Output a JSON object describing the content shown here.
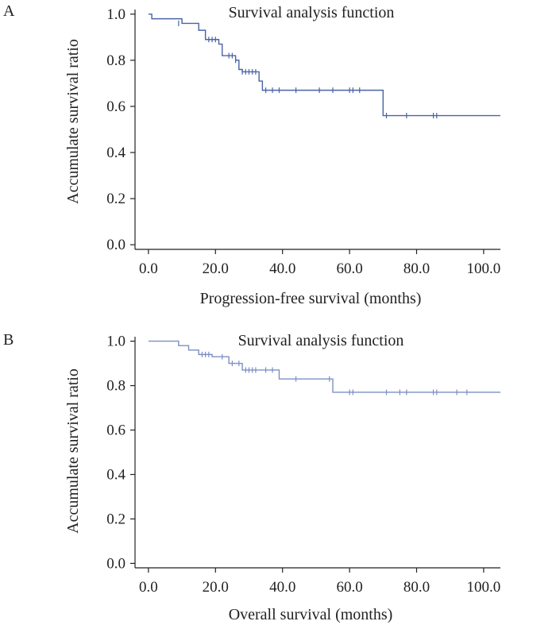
{
  "figure": {
    "panels": [
      "A",
      "B"
    ]
  },
  "chart_data": [
    {
      "type": "line",
      "panel": "A",
      "title": "Survival analysis function",
      "xlabel": "Progression-free survival (months)",
      "ylabel": "Accumulate survival ratio",
      "xlim": [
        -4,
        105
      ],
      "ylim": [
        -0.02,
        1.02
      ],
      "xticks": [
        0,
        20,
        40,
        60,
        80,
        100
      ],
      "xtick_labels": [
        "0.0",
        "20.0",
        "40.0",
        "60.0",
        "80.0",
        "100.0"
      ],
      "yticks": [
        0,
        0.2,
        0.4,
        0.6,
        0.8,
        1.0
      ],
      "ytick_labels": [
        "0.0",
        "0.2",
        "0.4",
        "0.6",
        "0.8",
        "1.0"
      ],
      "color": "#4a63a6",
      "steps": [
        [
          0,
          1.0
        ],
        [
          1,
          0.98
        ],
        [
          5,
          0.98
        ],
        [
          10,
          0.96
        ],
        [
          15,
          0.93
        ],
        [
          17,
          0.89
        ],
        [
          21,
          0.87
        ],
        [
          22,
          0.82
        ],
        [
          26,
          0.8
        ],
        [
          27,
          0.76
        ],
        [
          28,
          0.75
        ],
        [
          33,
          0.71
        ],
        [
          34,
          0.67
        ],
        [
          70,
          0.56
        ],
        [
          105,
          0.56
        ]
      ],
      "censored": [
        [
          9,
          0.96
        ],
        [
          18,
          0.89
        ],
        [
          19,
          0.89
        ],
        [
          20,
          0.89
        ],
        [
          24,
          0.82
        ],
        [
          25,
          0.82
        ],
        [
          26,
          0.8
        ],
        [
          28,
          0.75
        ],
        [
          29,
          0.75
        ],
        [
          30,
          0.75
        ],
        [
          31,
          0.75
        ],
        [
          32,
          0.75
        ],
        [
          35,
          0.67
        ],
        [
          37,
          0.67
        ],
        [
          39,
          0.67
        ],
        [
          44,
          0.67
        ],
        [
          51,
          0.67
        ],
        [
          55,
          0.67
        ],
        [
          60,
          0.67
        ],
        [
          61,
          0.67
        ],
        [
          63,
          0.67
        ],
        [
          71,
          0.56
        ],
        [
          77,
          0.56
        ],
        [
          85,
          0.56
        ],
        [
          86,
          0.56
        ]
      ]
    },
    {
      "type": "line",
      "panel": "B",
      "title": "Survival analysis function",
      "xlabel": "Overall survival (months)",
      "ylabel": "Accumulate survival ratio",
      "xlim": [
        -4,
        105
      ],
      "ylim": [
        -0.02,
        1.02
      ],
      "xticks": [
        0,
        20,
        40,
        60,
        80,
        100
      ],
      "xtick_labels": [
        "0.0",
        "20.0",
        "40.0",
        "60.0",
        "80.0",
        "100.0"
      ],
      "yticks": [
        0,
        0.2,
        0.4,
        0.6,
        0.8,
        1.0
      ],
      "ytick_labels": [
        "0.0",
        "0.2",
        "0.4",
        "0.6",
        "0.8",
        "1.0"
      ],
      "color": "#7d8fc4",
      "steps": [
        [
          0,
          1.0
        ],
        [
          9,
          0.98
        ],
        [
          12,
          0.96
        ],
        [
          15,
          0.94
        ],
        [
          19,
          0.93
        ],
        [
          24,
          0.9
        ],
        [
          28,
          0.87
        ],
        [
          39,
          0.83
        ],
        [
          55,
          0.77
        ],
        [
          105,
          0.77
        ]
      ],
      "censored": [
        [
          16,
          0.94
        ],
        [
          17,
          0.94
        ],
        [
          18,
          0.94
        ],
        [
          22,
          0.93
        ],
        [
          25,
          0.9
        ],
        [
          27,
          0.9
        ],
        [
          29,
          0.87
        ],
        [
          30,
          0.87
        ],
        [
          31,
          0.87
        ],
        [
          32,
          0.87
        ],
        [
          35,
          0.87
        ],
        [
          37,
          0.87
        ],
        [
          44,
          0.83
        ],
        [
          54,
          0.83
        ],
        [
          60,
          0.77
        ],
        [
          61,
          0.77
        ],
        [
          71,
          0.77
        ],
        [
          75,
          0.77
        ],
        [
          77,
          0.77
        ],
        [
          85,
          0.77
        ],
        [
          86,
          0.77
        ],
        [
          92,
          0.77
        ],
        [
          95,
          0.77
        ]
      ]
    }
  ]
}
